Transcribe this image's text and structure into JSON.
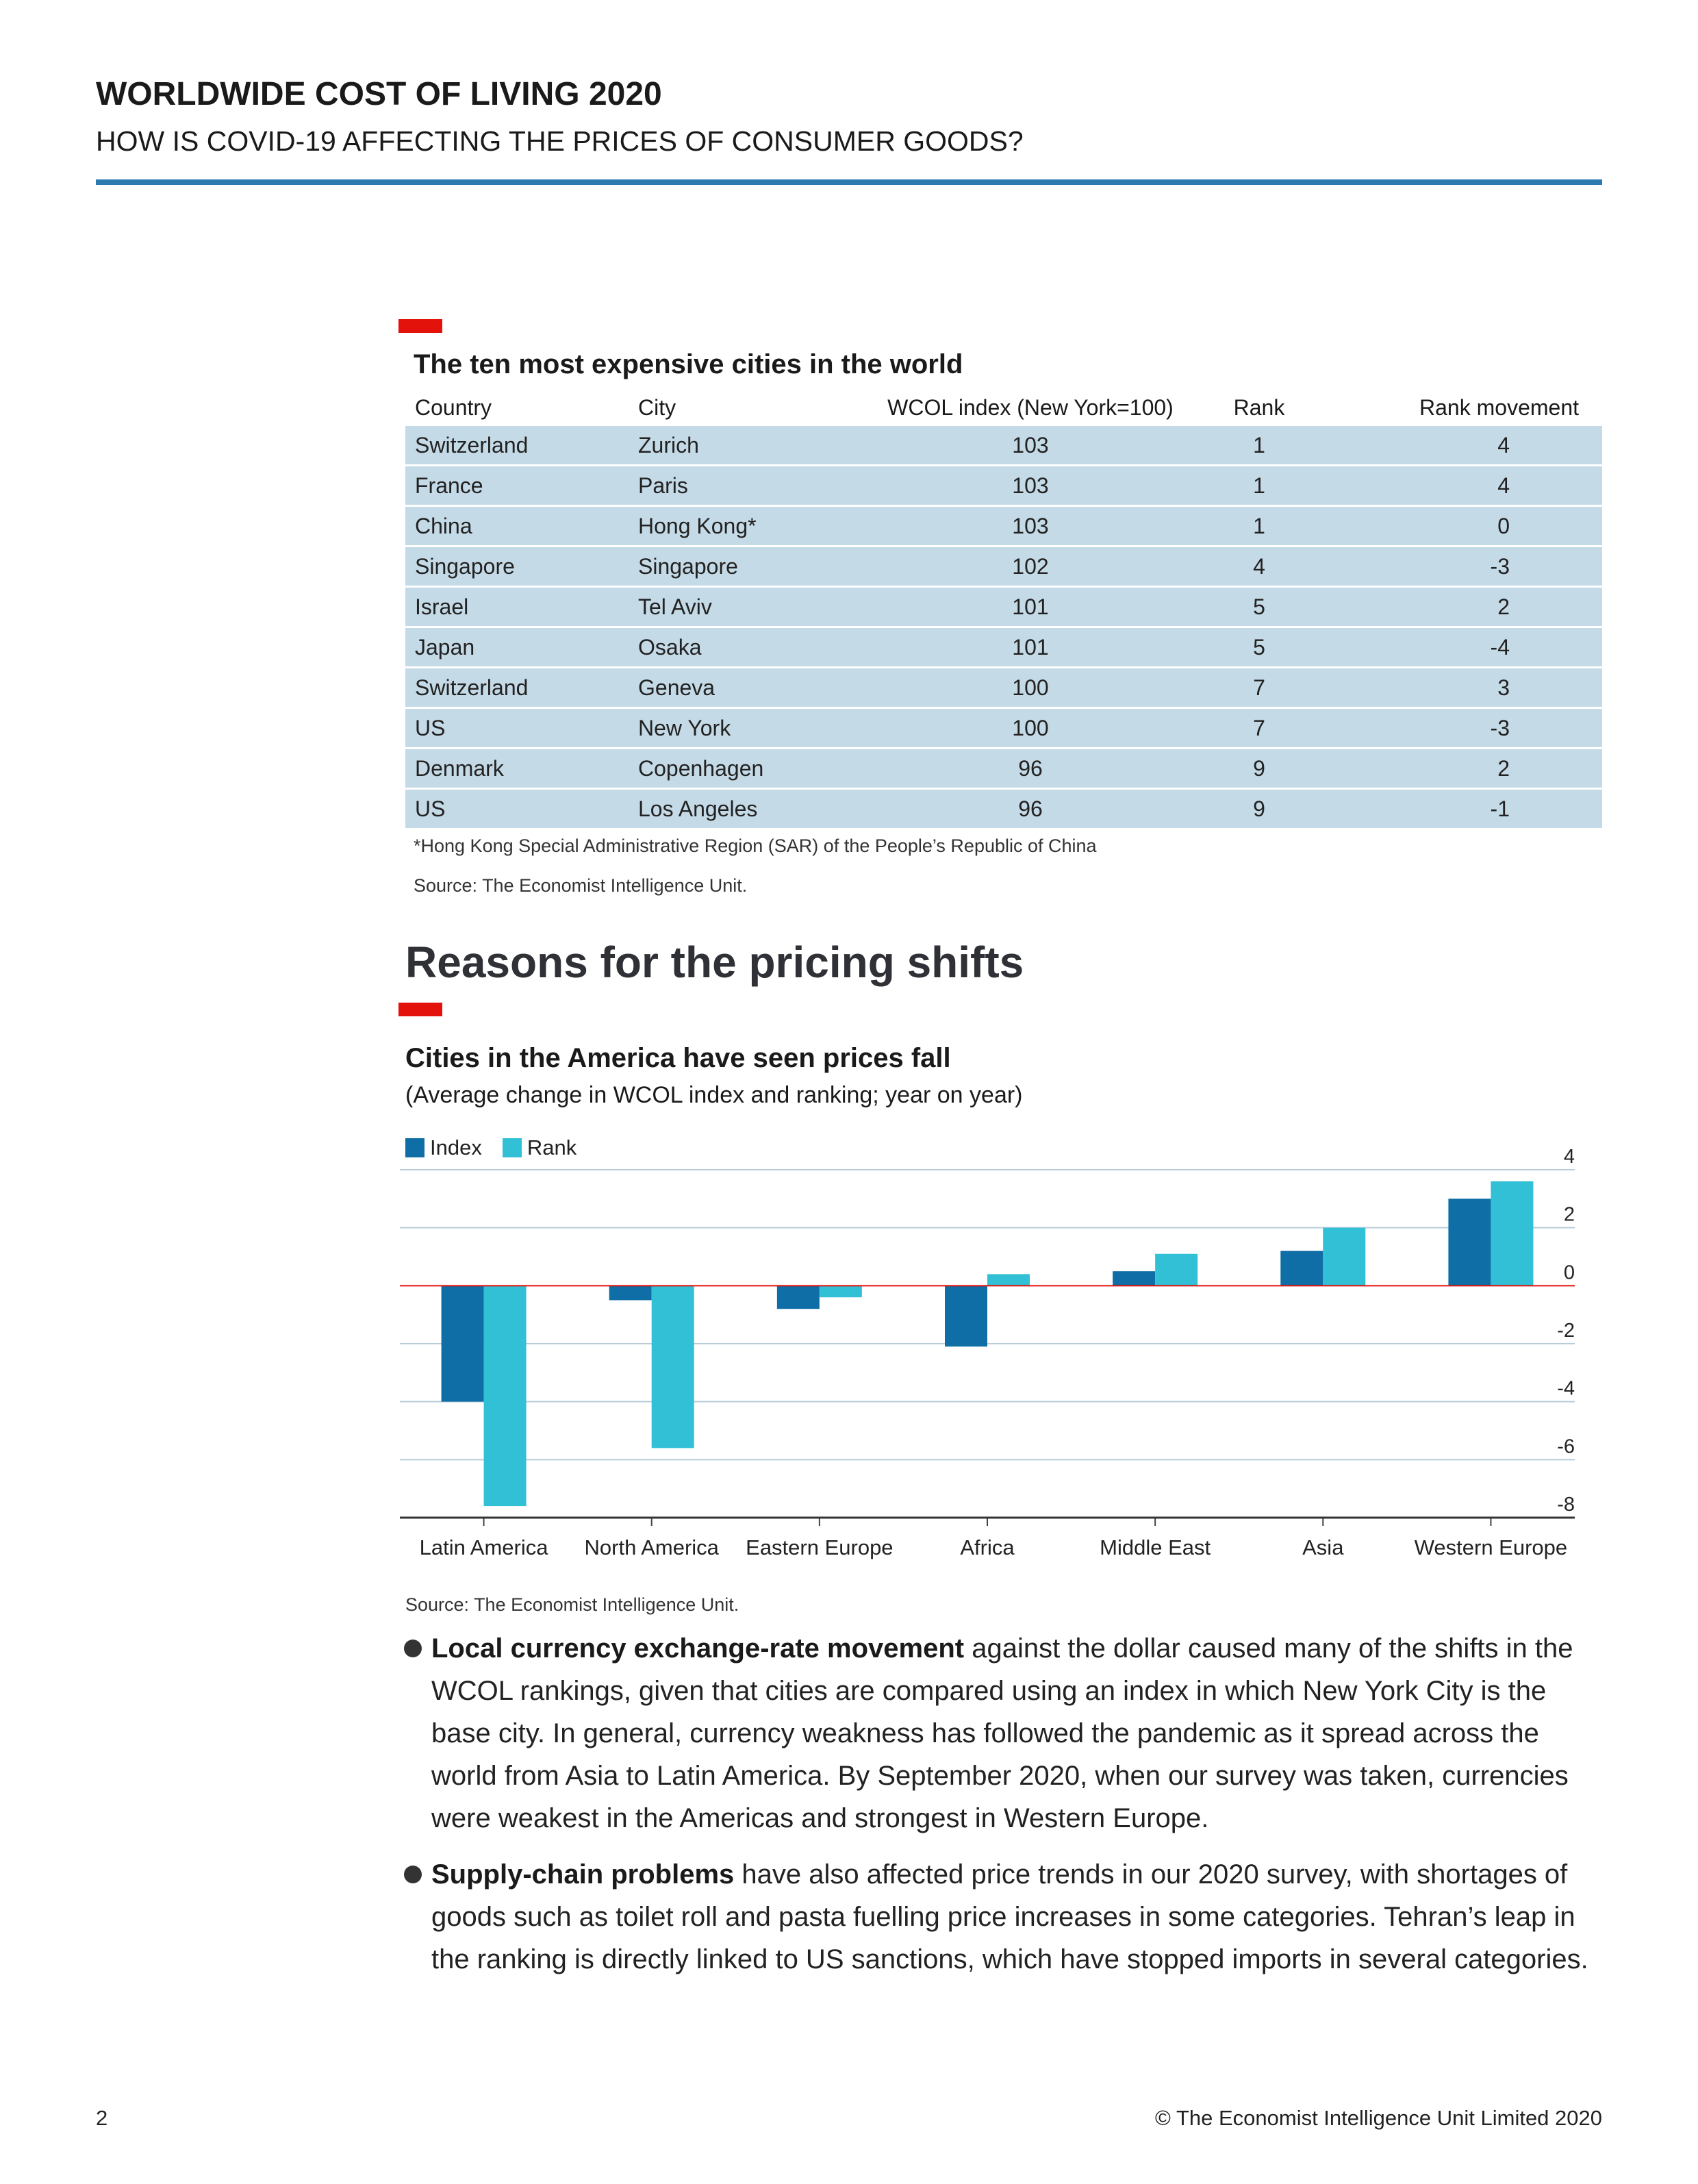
{
  "header": {
    "title": "WORLDWIDE COST OF LIVING 2020",
    "subtitle": "HOW IS COVID-19 AFFECTING THE PRICES OF CONSUMER GOODS?"
  },
  "table": {
    "title": "The ten most expensive cities in the world",
    "columns": [
      "Country",
      "City",
      "WCOL index (New York=100)",
      "Rank",
      "Rank movement"
    ],
    "rows": [
      [
        "Switzerland",
        "Zurich",
        "103",
        "1",
        "4"
      ],
      [
        "France",
        "Paris",
        "103",
        "1",
        "4"
      ],
      [
        "China",
        "Hong Kong*",
        "103",
        "1",
        "0"
      ],
      [
        "Singapore",
        "Singapore",
        "102",
        "4",
        "-3"
      ],
      [
        "Israel",
        "Tel Aviv",
        "101",
        "5",
        "2"
      ],
      [
        "Japan",
        "Osaka",
        "101",
        "5",
        "-4"
      ],
      [
        "Switzerland",
        "Geneva",
        "100",
        "7",
        "3"
      ],
      [
        "US",
        "New York",
        "100",
        "7",
        "-3"
      ],
      [
        "Denmark",
        "Copenhagen",
        "96",
        "9",
        "2"
      ],
      [
        "US",
        "Los Angeles",
        "96",
        "9",
        "-1"
      ]
    ],
    "footnote": "*Hong Kong Special Administrative Region (SAR) of the People’s Republic of China",
    "source": "Source: The Economist Intelligence Unit."
  },
  "section": {
    "heading": "Reasons for the pricing shifts"
  },
  "chart_data": {
    "type": "bar",
    "title": "Cities in the America have seen prices fall",
    "subtitle": "(Average change in WCOL index and ranking; year on year)",
    "categories": [
      "Latin America",
      "North America",
      "Eastern Europe",
      "Africa",
      "Middle East",
      "Asia",
      "Western Europe"
    ],
    "series": [
      {
        "name": "Index",
        "color": "#0f6ea6",
        "values": [
          -4.0,
          -0.5,
          -0.8,
          -2.1,
          0.5,
          1.2,
          3.0
        ]
      },
      {
        "name": "Rank",
        "color": "#31c0d5",
        "values": [
          -7.6,
          -5.6,
          -0.4,
          0.4,
          1.1,
          2.0,
          3.6
        ]
      }
    ],
    "ylim": [
      -8,
      4
    ],
    "yticks": [
      "4",
      "2",
      "0",
      "-2",
      "-4",
      "-6",
      "-8"
    ],
    "axis_side": "right",
    "grid": true,
    "legend": "top-left",
    "zero_line_color": "#e3120b",
    "source": "Source: The Economist Intelligence Unit."
  },
  "bullets": [
    {
      "lead": "Local currency exchange-rate movement",
      "text": " against the dollar caused many of the shifts in the WCOL rankings, given that cities are compared using an index in which New York City is the base city. In general, currency weakness has followed the pandemic as it spread across the world from Asia to Latin America. By September 2020, when our survey was taken, currencies were weakest in the Americas and strongest in Western Europe."
    },
    {
      "lead": "Supply-chain problems",
      "text": " have also affected price trends in our 2020 survey, with shortages of goods such as toilet roll and pasta fuelling price increases in some categories. Tehran’s leap in the ranking is directly linked to US sanctions, which have stopped imports in several categories."
    }
  ],
  "footer": {
    "page_number": "2",
    "copyright": "© The Economist Intelligence Unit Limited 2020"
  }
}
